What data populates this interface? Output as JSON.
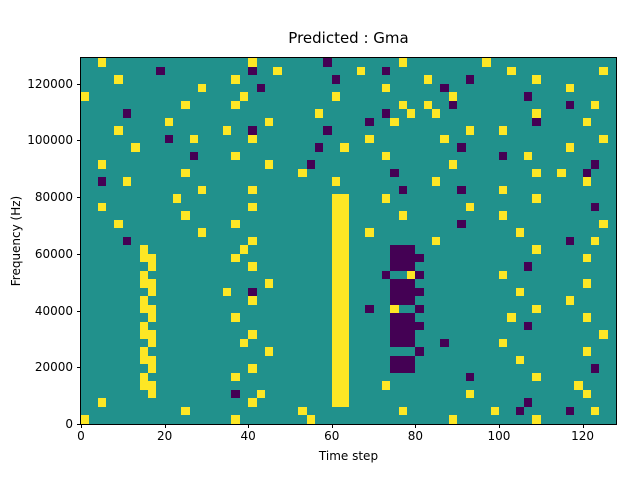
{
  "figure": {
    "background": "#ffffff"
  },
  "chart_data": {
    "type": "heatmap",
    "title": "Predicted : Gma",
    "xlabel": "Time step",
    "ylabel": "Frequency (Hz)",
    "x_range": [
      0,
      128
    ],
    "y_range": [
      0,
      129000
    ],
    "x_ticks": [
      0,
      20,
      40,
      60,
      80,
      100,
      120
    ],
    "y_ticks": [
      0,
      20000,
      40000,
      60000,
      80000,
      100000,
      120000
    ],
    "grid_cols": 64,
    "grid_rows": 43,
    "cell_time_span": 2,
    "cell_freq_span": 3000,
    "row_order": "top-to-bottom (row 0 = highest frequency band)",
    "value_legend": {
      ".": "background",
      "Y": "high",
      "P": "low"
    },
    "value_colors": {
      ".": "#21918c",
      "Y": "#fde725",
      "P": "#440154"
    },
    "grid": [
      [
        "..Y.....",
        "........",
        "....Y...",
        ".....P..",
        "......Y.",
        "........",
        "Y.......",
        "........"
      ],
      [
        "........",
        ".P......",
        "....P..Y",
        "........",
        ".Y..P...",
        "........",
        "...Y....",
        "......Y."
      ],
      [
        "....Y...",
        "........",
        "..Y.....",
        "......P.",
        "........",
        ".Y....P.",
        "......Y.",
        "........"
      ],
      [
        "........",
        "......Y.",
        ".....P..",
        "........",
        "....Y...",
        "...P....",
        "........",
        "..Y....."
      ],
      [
        "Y.......",
        "........",
        "...Y....",
        "......Y.",
        "........",
        "....Y...",
        ".....P..",
        "........"
      ],
      [
        "........",
        "....Y...",
        "..Y.....",
        "........",
        "......Y.",
        ".Y..P...",
        "........",
        "..P..Y.."
      ],
      [
        ".....P..",
        "........",
        "........",
        "....Y...",
        "....P..Y",
        "..Y.....",
        "......Y.",
        "........"
      ],
      [
        "........",
        "..Y.....",
        "......Y.",
        "........",
        "..P..Y..",
        "........",
        "......P.",
        "....Y..."
      ],
      [
        "....Y...",
        "........",
        ".Y..P...",
        ".....P..",
        "........",
        "......Y.",
        "..Y.....",
        "........"
      ],
      [
        "........",
        "..P..Y..",
        "....Y...",
        "........",
        "..Y.....",
        "...Y....",
        "........",
        "......Y."
      ],
      [
        "......Y.",
        "........",
        "........",
        "....P..Y",
        "........",
        ".....P..",
        "........",
        "..Y....."
      ],
      [
        "........",
        ".....P..",
        "..Y.....",
        "........",
        "....Y...",
        "........",
        "..P..Y..",
        "........"
      ],
      [
        "..Y.....",
        "........",
        "......Y.",
        "...P....",
        "........",
        "....Y...",
        "........",
        ".....P.."
      ],
      [
        "........",
        "....Y...",
        "........",
        "..Y.....",
        ".....P..",
        "........",
        "......Y.",
        ".Y..P..."
      ],
      [
        "..P..Y..",
        "........",
        "........",
        "......Y.",
        "........",
        "..Y.....",
        "........",
        "....Y..."
      ],
      [
        "........",
        "......Y.",
        "....Y...",
        "........",
        "......P.",
        ".....P..",
        "..Y.....",
        "........"
      ],
      [
        "........",
        "...Y....",
        "........",
        "......YY",
        "....Y...",
        "........",
        "......Y.",
        "........"
      ],
      [
        "..Y.....",
        "........",
        "....Y...",
        "......YY",
        "........",
        "......Y.",
        "........",
        ".....P.."
      ],
      [
        "........",
        "....Y...",
        "........",
        "......YY",
        "......Y.",
        "........",
        "..Y.....",
        "........"
      ],
      [
        "....Y...",
        "........",
        "..Y.....",
        "......YY",
        "........",
        ".....P..",
        "........",
        "......Y."
      ],
      [
        "........",
        "......Y.",
        "........",
        "......YY",
        "..Y.....",
        "........",
        "....Y...",
        "........"
      ],
      [
        ".....P..",
        "........",
        "....Y...",
        "......YY",
        "........",
        "..Y.....",
        "........",
        "..P..Y.."
      ],
      [
        ".......Y",
        "........",
        "...Y....",
        "......YY",
        ".....PPP",
        "........",
        "......Y.",
        "........"
      ],
      [
        ".......Y",
        "Y.......",
        "..Y.....",
        "......YY",
        ".....PPP",
        "P.......",
        "........",
        "....Y..."
      ],
      [
        "........",
        "Y.......",
        "....Y...",
        "......YY",
        ".....PPP",
        "........",
        ".....P..",
        "........"
      ],
      [
        ".......Y",
        "........",
        "........",
        "......YY",
        "....P..Y",
        "P.......",
        "..Y.....",
        "........"
      ],
      [
        ".......Y",
        "Y.......",
        "......Y.",
        "......YY",
        ".....PPP",
        "........",
        "........",
        "....Y..."
      ],
      [
        "........",
        "Y.......",
        ".Y..P...",
        "......YY",
        ".....PPP",
        "P.......",
        "....Y...",
        "........"
      ],
      [
        ".......Y",
        "........",
        "....Y...",
        "......YY",
        ".....PPP",
        "........",
        "........",
        "..Y....."
      ],
      [
        ".......Y",
        "Y.......",
        "........",
        "......YY",
        "..P..Y..",
        "P.......",
        "......Y.",
        "........"
      ],
      [
        "........",
        "Y.......",
        "..Y.....",
        "......YY",
        ".....PPP",
        "........",
        "...Y....",
        "....Y..."
      ],
      [
        ".......Y",
        "........",
        "........",
        "......YY",
        ".....PPP",
        "P.......",
        ".....P..",
        "........"
      ],
      [
        ".......Y",
        "Y.......",
        "....Y...",
        "......YY",
        ".....PPP",
        "........",
        "........",
        "......Y."
      ],
      [
        "........",
        "Y.......",
        "...Y....",
        "......YY",
        ".....PPP",
        "...P....",
        "..Y.....",
        "........"
      ],
      [
        ".......Y",
        "........",
        "......Y.",
        "......YY",
        "........",
        "P.......",
        "........",
        "....Y..."
      ],
      [
        ".......Y",
        "Y.......",
        "........",
        "......YY",
        ".....PPP",
        "........",
        "....Y...",
        "........"
      ],
      [
        "........",
        "Y.......",
        "....Y...",
        "......YY",
        ".....PPP",
        "........",
        "........",
        ".....P.."
      ],
      [
        ".......Y",
        "........",
        "..Y.....",
        "......YY",
        "........",
        "......P.",
        "......Y.",
        "........"
      ],
      [
        ".......Y",
        "Y.......",
        "........",
        "......YY",
        "....Y...",
        "........",
        "........",
        "...Y...."
      ],
      [
        "........",
        "Y.......",
        "..P..Y..",
        "......YY",
        "........",
        "......Y.",
        "........",
        "....Y..."
      ],
      [
        "..Y.....",
        "........",
        "....Y...",
        "......YY",
        "........",
        "........",
        ".....P..",
        "........"
      ],
      [
        "........",
        "....Y...",
        "........",
        "..Y.....",
        "......Y.",
        "........",
        ".Y..P...",
        "..P..Y.."
      ],
      [
        "Y.......",
        "........",
        "..Y.....",
        "...Y....",
        "........",
        "....Y...",
        "......Y.",
        "........"
      ]
    ]
  }
}
